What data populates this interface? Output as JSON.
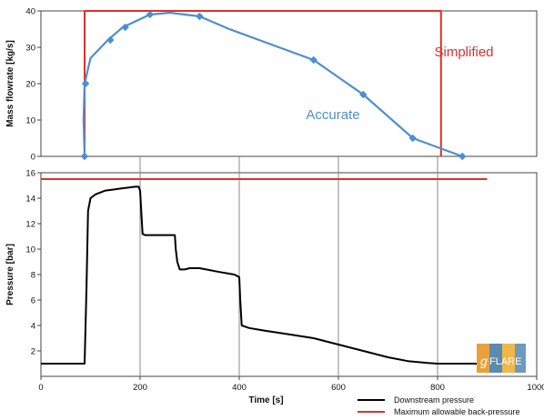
{
  "chart_data": [
    {
      "type": "line",
      "ylabel": "Mass flowrate [kg/s]",
      "xlim": [
        0,
        1000
      ],
      "ylim": [
        0,
        40
      ],
      "yticks": [
        0,
        10,
        20,
        30,
        40
      ],
      "grid": false,
      "series": [
        {
          "name": "Simplified",
          "color": "#e0302a",
          "x": [
            88,
            88,
            807,
            807
          ],
          "y": [
            0,
            40,
            40,
            0
          ]
        },
        {
          "name": "Accurate",
          "color": "#4d8fd1",
          "x": [
            88,
            86,
            88,
            100,
            135,
            165,
            220,
            260,
            320,
            380,
            460,
            550,
            650,
            750,
            850
          ],
          "y": [
            0,
            10,
            20,
            27,
            32,
            35.5,
            39,
            39.5,
            38.5,
            35,
            31,
            26.5,
            17,
            5,
            0
          ]
        }
      ],
      "markers_x": [
        88,
        90,
        140,
        170,
        220,
        320,
        550,
        650,
        750,
        850
      ],
      "markers_y": [
        0,
        20,
        32,
        35.5,
        39,
        38.5,
        26.5,
        17,
        5,
        0
      ],
      "annotations": [
        {
          "text": "Simplified",
          "color": "#e0302a"
        },
        {
          "text": "Accurate",
          "color": "#4d8fd1"
        }
      ]
    },
    {
      "type": "line",
      "xlabel": "Time [s]",
      "ylabel": "Pressure [bar]",
      "xlim": [
        0,
        1000
      ],
      "ylim": [
        0,
        16
      ],
      "xticks": [
        0,
        200,
        400,
        600,
        800,
        1000
      ],
      "yticks": [
        2,
        4,
        6,
        8,
        10,
        12,
        14,
        16
      ],
      "grid": "vertical",
      "legend_position": "bottom-right",
      "series": [
        {
          "name": "Downstream pressure",
          "color": "#000000",
          "x": [
            0,
            85,
            88,
            92,
            95,
            100,
            110,
            130,
            150,
            170,
            190,
            197,
            200,
            205,
            210,
            270,
            272,
            275,
            280,
            290,
            300,
            320,
            360,
            390,
            400,
            402,
            405,
            420,
            450,
            500,
            550,
            600,
            650,
            700,
            740,
            780,
            800,
            900
          ],
          "y": [
            1,
            1,
            1,
            7,
            13,
            14,
            14.3,
            14.6,
            14.7,
            14.8,
            14.9,
            14.9,
            14.6,
            11.2,
            11.1,
            11.1,
            10,
            9,
            8.4,
            8.4,
            8.5,
            8.5,
            8.2,
            8.0,
            7.8,
            6,
            4,
            3.8,
            3.6,
            3.3,
            3.0,
            2.5,
            2.0,
            1.5,
            1.2,
            1.05,
            1.0,
            1.0
          ]
        },
        {
          "name": "Maximum allowable back-pressure",
          "color": "#e0302a",
          "x": [
            0,
            900
          ],
          "y": [
            15.5,
            15.5
          ]
        }
      ]
    }
  ],
  "logo": {
    "text": "FLARE",
    "prefix": "g"
  }
}
